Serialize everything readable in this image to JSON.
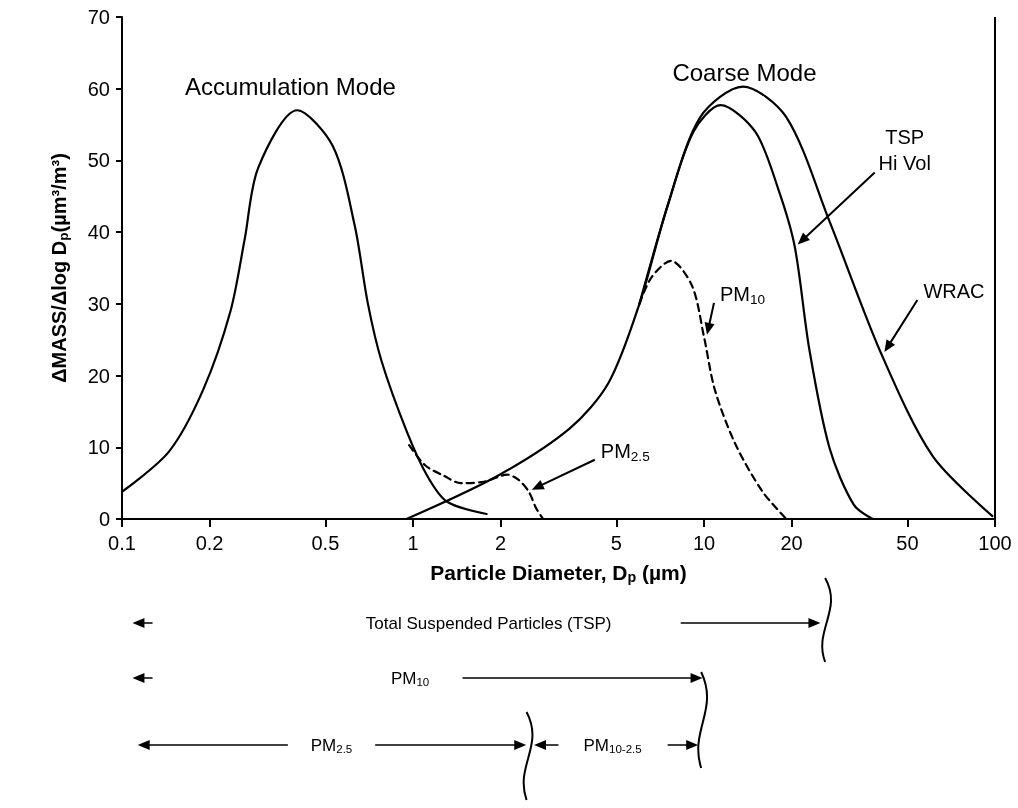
{
  "chart_data": {
    "type": "line",
    "xlabel": "Particle Diameter, D$_{p}$ (µm)",
    "ylabel": "ΔMASS/Δlog D$_{p}$(µm³/m³)",
    "log": "x",
    "xlim": [
      0.1,
      100
    ],
    "xticks": [
      0.1,
      0.2,
      0.5,
      1,
      2,
      5,
      10,
      20,
      50,
      100
    ],
    "ylim": [
      0,
      70
    ],
    "yticks": [
      0,
      10,
      20,
      30,
      40,
      50,
      60,
      70
    ],
    "grid": false,
    "legend": false,
    "marker": "none",
    "series": [
      {
        "color": "#000000",
        "line_style": "solid",
        "x": [
          0.1,
          0.145,
          0.19,
          0.236,
          0.264,
          0.294,
          0.4,
          0.53,
          0.63,
          0.7,
          0.78,
          0.95,
          1.12,
          1.31,
          1.79
        ],
        "values": [
          3.8,
          9.4,
          18,
          29,
          39,
          49,
          57,
          52,
          41,
          30,
          22,
          12.3,
          6,
          2.4,
          0.7
        ]
      },
      {
        "name": "WRAC",
        "color": "#000000",
        "line_style": "solid",
        "x": [
          0.95,
          1.95,
          3.45,
          4.7,
          6,
          7.5,
          9.7,
          13.6,
          19.2,
          27,
          40.7,
          61,
          98
        ],
        "values": [
          0,
          6,
          12.6,
          19,
          30,
          43.7,
          56,
          60.3,
          56,
          41.5,
          23,
          8.8,
          0.4
        ]
      },
      {
        "name": "TSP Hi Vol",
        "color": "#000000",
        "line_style": "solid",
        "x": [
          6,
          7.5,
          9.2,
          11.4,
          15,
          18,
          20.5,
          23,
          27,
          32.7,
          38
        ],
        "values": [
          30,
          43.7,
          54,
          57.7,
          54,
          46,
          38,
          23.7,
          9.9,
          2,
          0
        ]
      },
      {
        "name": "PM$_{10}$",
        "color": "#000000",
        "line_style": "dashed",
        "x": [
          6,
          6.6,
          7.7,
          9.1,
          10,
          10.9,
          12.8,
          15.9,
          19.2
        ],
        "values": [
          30,
          33.7,
          36,
          32.5,
          25.4,
          18,
          10.5,
          3.8,
          0
        ]
      },
      {
        "name": "PM$_{2.5}$",
        "color": "#000000",
        "line_style": "dashed",
        "x": [
          0.97,
          1.1,
          1.28,
          1.46,
          1.75,
          2,
          2.1,
          2.3,
          2.5,
          2.65,
          2.8
        ],
        "values": [
          10.3,
          7.5,
          6,
          5,
          5.2,
          6,
          6.2,
          5.5,
          3.8,
          1.5,
          0
        ]
      }
    ],
    "annotations": [
      "Accumulation Mode",
      "Coarse Mode",
      "Total Suspended Particles (TSP)",
      "PM$_{10}$",
      "PM$_{2.5}$",
      "PM$_{10-2.5}$"
    ]
  }
}
